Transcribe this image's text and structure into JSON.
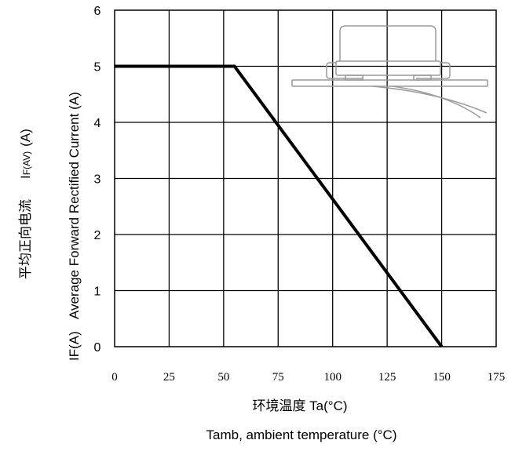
{
  "chart_data": {
    "type": "line",
    "title": "",
    "xlabel_cn": "环境温度 Ta(°C)",
    "xlabel_en": "Tamb, ambient temperature (°C)",
    "ylabel_prefix": "IF(A)",
    "ylabel_en": "Average Forward Rectified Current (A)",
    "ylabel_cn": "平均正向电流",
    "ylabel_sym_main": "I",
    "ylabel_sym_sub": "F(AV)",
    "ylabel_sym_unit": "(A)",
    "xlim": [
      0,
      175
    ],
    "ylim": [
      0,
      6
    ],
    "x_ticks": [
      "0",
      "25",
      "50",
      "75",
      "100",
      "125",
      "150",
      "175"
    ],
    "y_ticks": [
      "0",
      "1",
      "2",
      "3",
      "4",
      "5",
      "6"
    ],
    "grid": true,
    "series": [
      {
        "x": [
          0,
          55,
          150
        ],
        "y": [
          5,
          5,
          0
        ]
      }
    ]
  }
}
